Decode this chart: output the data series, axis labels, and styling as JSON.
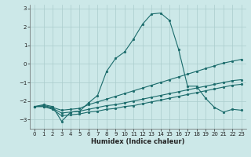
{
  "xlabel": "Humidex (Indice chaleur)",
  "bg_color": "#cce8e8",
  "grid_color": "#aacccc",
  "line_color": "#1a6b6b",
  "xlim": [
    -0.5,
    23.5
  ],
  "ylim": [
    -3.5,
    3.2
  ],
  "yticks": [
    -3,
    -2,
    -1,
    0,
    1,
    2,
    3
  ],
  "xticks": [
    0,
    1,
    2,
    3,
    4,
    5,
    6,
    7,
    8,
    9,
    10,
    11,
    12,
    13,
    14,
    15,
    16,
    17,
    18,
    19,
    20,
    21,
    22,
    23
  ],
  "series": [
    {
      "x": [
        0,
        1,
        2,
        3,
        4,
        5,
        6,
        7,
        8,
        9,
        10,
        11,
        12,
        13,
        14,
        15,
        16,
        17,
        18,
        19,
        20,
        21,
        22,
        23
      ],
      "y": [
        -2.3,
        -2.2,
        -2.3,
        -3.1,
        -2.6,
        -2.55,
        -2.1,
        -1.7,
        -0.4,
        0.3,
        0.65,
        1.35,
        2.15,
        2.7,
        2.75,
        2.35,
        0.8,
        -1.2,
        -1.2,
        -1.85,
        -2.35,
        -2.6,
        -2.45,
        -2.5
      ]
    },
    {
      "x": [
        0,
        1,
        2,
        3,
        4,
        5,
        6,
        7,
        8,
        9,
        10,
        11,
        12,
        13,
        14,
        15,
        16,
        17,
        18,
        19,
        20,
        21,
        22,
        23
      ],
      "y": [
        -2.3,
        -2.25,
        -2.35,
        -2.5,
        -2.45,
        -2.4,
        -2.2,
        -2.05,
        -1.9,
        -1.75,
        -1.6,
        -1.45,
        -1.3,
        -1.15,
        -1.0,
        -0.85,
        -0.7,
        -0.55,
        -0.4,
        -0.25,
        -0.1,
        0.05,
        0.15,
        0.25
      ]
    },
    {
      "x": [
        0,
        1,
        2,
        3,
        4,
        5,
        6,
        7,
        8,
        9,
        10,
        11,
        12,
        13,
        14,
        15,
        16,
        17,
        18,
        19,
        20,
        21,
        22,
        23
      ],
      "y": [
        -2.3,
        -2.3,
        -2.4,
        -2.65,
        -2.6,
        -2.55,
        -2.45,
        -2.35,
        -2.25,
        -2.2,
        -2.1,
        -2.0,
        -1.9,
        -1.8,
        -1.7,
        -1.6,
        -1.5,
        -1.4,
        -1.3,
        -1.2,
        -1.1,
        -1.0,
        -0.9,
        -0.85
      ]
    },
    {
      "x": [
        0,
        1,
        2,
        3,
        4,
        5,
        6,
        7,
        8,
        9,
        10,
        11,
        12,
        13,
        14,
        15,
        16,
        17,
        18,
        19,
        20,
        21,
        22,
        23
      ],
      "y": [
        -2.3,
        -2.3,
        -2.45,
        -2.8,
        -2.75,
        -2.7,
        -2.6,
        -2.55,
        -2.45,
        -2.4,
        -2.3,
        -2.25,
        -2.15,
        -2.05,
        -1.95,
        -1.85,
        -1.75,
        -1.65,
        -1.55,
        -1.45,
        -1.35,
        -1.25,
        -1.15,
        -1.1
      ]
    }
  ]
}
